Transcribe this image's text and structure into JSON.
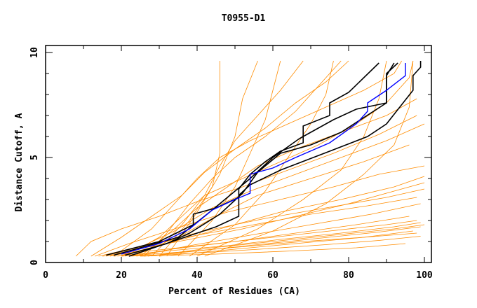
{
  "chart_data": {
    "type": "line",
    "title": "T0955-D1",
    "xlabel": "Percent of Residues (CA)",
    "ylabel": "Distance Cutoff, A",
    "xlim": [
      0,
      100
    ],
    "ylim": [
      0,
      10
    ],
    "xticks": [
      "0",
      "20",
      "40",
      "60",
      "80",
      "100"
    ],
    "yticks": [
      "0",
      "5",
      "10"
    ],
    "grid": false,
    "colors": {
      "other": "#ff8c00",
      "highlight": "#0000ff",
      "selected": "#000000"
    },
    "series_other": [
      [
        [
          8,
          0.3
        ],
        [
          12,
          1.0
        ],
        [
          20,
          1.6
        ],
        [
          30,
          2.2
        ],
        [
          40,
          2.9
        ],
        [
          52,
          3.6
        ],
        [
          64,
          4.4
        ],
        [
          76,
          5.2
        ],
        [
          88,
          6.1
        ],
        [
          98,
          7.0
        ]
      ],
      [
        [
          12,
          0.3
        ],
        [
          20,
          1.2
        ],
        [
          28,
          2.2
        ],
        [
          36,
          3.2
        ],
        [
          42,
          4.3
        ],
        [
          50,
          5.4
        ],
        [
          58,
          6.4
        ],
        [
          66,
          7.6
        ],
        [
          74,
          8.6
        ],
        [
          80,
          9.6
        ]
      ],
      [
        [
          14,
          0.3
        ],
        [
          26,
          0.8
        ],
        [
          40,
          1.3
        ],
        [
          55,
          1.8
        ],
        [
          70,
          2.3
        ],
        [
          85,
          2.7
        ],
        [
          98,
          3.1
        ]
      ],
      [
        [
          15,
          0.3
        ],
        [
          30,
          0.6
        ],
        [
          45,
          0.9
        ],
        [
          60,
          1.2
        ],
        [
          75,
          1.5
        ],
        [
          90,
          1.8
        ],
        [
          98,
          2.0
        ]
      ],
      [
        [
          18,
          0.3
        ],
        [
          32,
          0.55
        ],
        [
          48,
          0.8
        ],
        [
          62,
          1.1
        ],
        [
          78,
          1.4
        ],
        [
          92,
          1.7
        ],
        [
          99,
          1.9
        ]
      ],
      [
        [
          20,
          0.3
        ],
        [
          36,
          0.5
        ],
        [
          52,
          0.75
        ],
        [
          68,
          1.0
        ],
        [
          84,
          1.2
        ],
        [
          97,
          1.5
        ]
      ],
      [
        [
          22,
          0.3
        ],
        [
          40,
          0.45
        ],
        [
          58,
          0.65
        ],
        [
          74,
          0.85
        ],
        [
          88,
          1.05
        ],
        [
          99,
          1.25
        ]
      ],
      [
        [
          25,
          0.3
        ],
        [
          45,
          0.4
        ],
        [
          65,
          0.55
        ],
        [
          82,
          0.7
        ],
        [
          95,
          0.9
        ]
      ],
      [
        [
          16,
          0.3
        ],
        [
          28,
          0.9
        ],
        [
          42,
          1.5
        ],
        [
          58,
          2.1
        ],
        [
          74,
          2.6
        ],
        [
          90,
          3.1
        ],
        [
          100,
          3.5
        ]
      ],
      [
        [
          19,
          0.3
        ],
        [
          34,
          1.0
        ],
        [
          48,
          1.7
        ],
        [
          62,
          2.4
        ],
        [
          78,
          3.0
        ],
        [
          92,
          3.6
        ],
        [
          100,
          4.1
        ]
      ],
      [
        [
          23,
          0.3
        ],
        [
          36,
          1.3
        ],
        [
          46,
          2.3
        ],
        [
          56,
          3.2
        ],
        [
          70,
          4.0
        ],
        [
          84,
          4.8
        ],
        [
          96,
          5.6
        ]
      ],
      [
        [
          25,
          0.3
        ],
        [
          34,
          1.6
        ],
        [
          40,
          2.6
        ],
        [
          48,
          3.6
        ],
        [
          56,
          4.6
        ],
        [
          66,
          5.4
        ],
        [
          78,
          6.2
        ],
        [
          90,
          7.0
        ],
        [
          98,
          7.8
        ]
      ],
      [
        [
          28,
          0.3
        ],
        [
          36,
          1.8
        ],
        [
          42,
          3.2
        ],
        [
          46,
          4.6
        ],
        [
          50,
          5.8
        ],
        [
          56,
          7.0
        ],
        [
          62,
          8.2
        ],
        [
          68,
          9.6
        ]
      ],
      [
        [
          30,
          0.3
        ],
        [
          38,
          2.0
        ],
        [
          44,
          3.6
        ],
        [
          46,
          5.2
        ],
        [
          46,
          9.6
        ]
      ],
      [
        [
          32,
          0.3
        ],
        [
          40,
          2.4
        ],
        [
          46,
          4.2
        ],
        [
          50,
          6.0
        ],
        [
          52,
          7.8
        ],
        [
          56,
          9.6
        ]
      ],
      [
        [
          26,
          0.3
        ],
        [
          32,
          1.4
        ],
        [
          38,
          2.8
        ],
        [
          44,
          4.0
        ],
        [
          50,
          5.0
        ],
        [
          58,
          6.0
        ],
        [
          66,
          7.2
        ],
        [
          72,
          8.4
        ],
        [
          78,
          9.6
        ]
      ],
      [
        [
          21,
          0.3
        ],
        [
          30,
          1.2
        ],
        [
          36,
          2.2
        ],
        [
          42,
          3.2
        ],
        [
          52,
          4.0
        ],
        [
          62,
          4.8
        ],
        [
          72,
          5.6
        ],
        [
          82,
          6.6
        ],
        [
          90,
          7.6
        ],
        [
          96,
          8.8
        ],
        [
          97,
          9.6
        ]
      ],
      [
        [
          17,
          0.3
        ],
        [
          26,
          0.7
        ],
        [
          38,
          1.1
        ],
        [
          52,
          1.6
        ],
        [
          66,
          2.2
        ],
        [
          80,
          2.8
        ],
        [
          94,
          3.5
        ],
        [
          100,
          3.8
        ]
      ],
      [
        [
          24,
          0.3
        ],
        [
          38,
          0.8
        ],
        [
          54,
          1.3
        ],
        [
          70,
          1.8
        ],
        [
          86,
          2.3
        ],
        [
          99,
          2.8
        ]
      ],
      [
        [
          27,
          0.3
        ],
        [
          44,
          0.7
        ],
        [
          60,
          1.0
        ],
        [
          76,
          1.3
        ],
        [
          92,
          1.6
        ],
        [
          100,
          1.8
        ]
      ],
      [
        [
          30,
          0.3
        ],
        [
          48,
          0.6
        ],
        [
          66,
          0.9
        ],
        [
          84,
          1.2
        ],
        [
          98,
          1.4
        ]
      ],
      [
        [
          20,
          0.3
        ],
        [
          34,
          1.5
        ],
        [
          44,
          2.6
        ],
        [
          54,
          3.4
        ],
        [
          66,
          4.2
        ],
        [
          78,
          5.0
        ],
        [
          90,
          5.8
        ],
        [
          100,
          6.6
        ]
      ],
      [
        [
          35,
          0.3
        ],
        [
          44,
          2.0
        ],
        [
          50,
          3.6
        ],
        [
          54,
          5.2
        ],
        [
          58,
          6.8
        ],
        [
          60,
          8.2
        ],
        [
          62,
          9.6
        ]
      ],
      [
        [
          38,
          0.3
        ],
        [
          50,
          1.8
        ],
        [
          58,
          3.4
        ],
        [
          64,
          5.0
        ],
        [
          70,
          6.6
        ],
        [
          74,
          8.0
        ],
        [
          76,
          9.6
        ]
      ],
      [
        [
          40,
          0.3
        ],
        [
          56,
          1.6
        ],
        [
          68,
          3.0
        ],
        [
          78,
          4.4
        ],
        [
          84,
          6.0
        ],
        [
          88,
          7.8
        ],
        [
          90,
          9.6
        ]
      ],
      [
        [
          42,
          0.3
        ],
        [
          60,
          1.5
        ],
        [
          74,
          2.8
        ],
        [
          84,
          4.2
        ],
        [
          92,
          5.6
        ],
        [
          96,
          7.4
        ],
        [
          97,
          9.6
        ]
      ],
      [
        [
          13,
          0.3
        ],
        [
          22,
          0.9
        ],
        [
          34,
          1.6
        ],
        [
          48,
          2.4
        ],
        [
          62,
          3.0
        ],
        [
          76,
          3.6
        ],
        [
          88,
          4.2
        ],
        [
          100,
          4.6
        ]
      ],
      [
        [
          18,
          0.3
        ],
        [
          28,
          1.6
        ],
        [
          34,
          2.8
        ],
        [
          40,
          4.0
        ],
        [
          46,
          5.0
        ],
        [
          54,
          5.8
        ],
        [
          64,
          6.6
        ],
        [
          74,
          7.4
        ],
        [
          84,
          8.2
        ],
        [
          92,
          9.0
        ],
        [
          94,
          9.6
        ]
      ],
      [
        [
          22,
          0.3
        ],
        [
          34,
          0.65
        ],
        [
          50,
          1.0
        ],
        [
          66,
          1.4
        ],
        [
          82,
          1.8
        ],
        [
          96,
          2.2
        ]
      ],
      [
        [
          26,
          0.3
        ],
        [
          40,
          0.55
        ],
        [
          56,
          0.85
        ],
        [
          72,
          1.15
        ],
        [
          88,
          1.45
        ],
        [
          99,
          1.7
        ]
      ]
    ],
    "series_highlight": [
      [
        [
          20,
          0.4
        ],
        [
          30,
          0.9
        ],
        [
          38,
          1.6
        ],
        [
          44,
          2.5
        ],
        [
          50,
          3.0
        ],
        [
          54,
          3.3
        ],
        [
          54,
          4.2
        ],
        [
          60,
          4.5
        ],
        [
          66,
          5.0
        ],
        [
          75,
          5.7
        ],
        [
          82,
          6.6
        ],
        [
          85,
          7.2
        ],
        [
          85,
          7.6
        ],
        [
          90,
          8.2
        ],
        [
          95,
          8.9
        ],
        [
          95,
          9.5
        ]
      ]
    ],
    "series_selected": [
      [
        [
          16,
          0.35
        ],
        [
          30,
          1.0
        ],
        [
          39,
          1.8
        ],
        [
          39,
          2.3
        ],
        [
          45,
          2.6
        ],
        [
          51,
          3.1
        ],
        [
          51,
          3.5
        ],
        [
          54,
          4.2
        ],
        [
          58,
          4.8
        ],
        [
          62,
          5.3
        ],
        [
          68,
          5.7
        ],
        [
          68,
          6.5
        ],
        [
          75,
          7.0
        ],
        [
          75,
          7.6
        ],
        [
          80,
          8.1
        ],
        [
          84,
          8.8
        ],
        [
          88,
          9.5
        ]
      ],
      [
        [
          18,
          0.35
        ],
        [
          35,
          1.2
        ],
        [
          44,
          2.5
        ],
        [
          54,
          4.0
        ],
        [
          60,
          5.0
        ],
        [
          67,
          5.9
        ],
        [
          70,
          6.2
        ],
        [
          76,
          6.8
        ],
        [
          82,
          7.3
        ],
        [
          90,
          7.6
        ],
        [
          90,
          9.0
        ],
        [
          93,
          9.5
        ]
      ],
      [
        [
          22,
          0.3
        ],
        [
          40,
          1.4
        ],
        [
          45,
          1.7
        ],
        [
          51,
          2.2
        ],
        [
          51,
          3.2
        ],
        [
          54,
          3.7
        ],
        [
          62,
          4.4
        ],
        [
          75,
          5.3
        ],
        [
          85,
          6.0
        ],
        [
          90,
          6.6
        ],
        [
          97,
          8.2
        ],
        [
          97,
          8.9
        ],
        [
          99,
          9.3
        ],
        [
          99,
          9.6
        ]
      ],
      [
        [
          21,
          0.35
        ],
        [
          32,
          0.9
        ],
        [
          38,
          1.4
        ],
        [
          46,
          2.3
        ],
        [
          52,
          3.3
        ],
        [
          56,
          4.3
        ],
        [
          62,
          5.2
        ],
        [
          70,
          5.6
        ],
        [
          78,
          6.2
        ],
        [
          90,
          7.6
        ],
        [
          90,
          8.9
        ],
        [
          92,
          9.5
        ]
      ]
    ]
  }
}
